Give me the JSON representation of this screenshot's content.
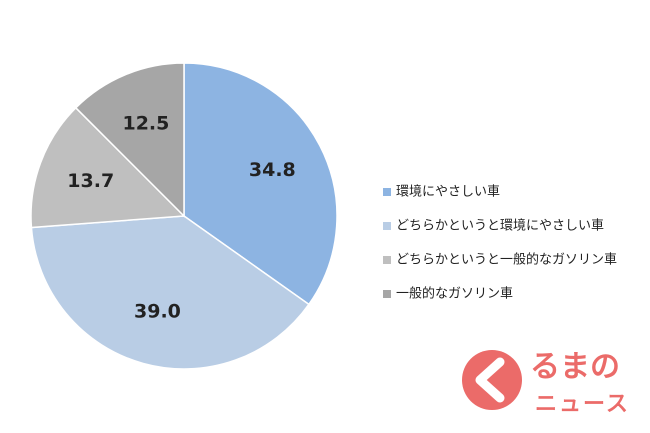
{
  "chart_data": {
    "type": "pie",
    "categories": [
      "環境にやさしい車",
      "どちらかというと環境にやさしい車",
      "どちらかというと一般的なガソリン車",
      "一般的なガソリン車"
    ],
    "values": [
      34.8,
      39.0,
      13.7,
      12.5
    ],
    "value_labels": [
      "34.8",
      "39.0",
      "13.7",
      "12.5"
    ],
    "colors": [
      "#8db4e2",
      "#b9cde5",
      "#bfbfbf",
      "#a6a6a6"
    ],
    "legend": "right"
  },
  "logo": {
    "text": "るまの",
    "subtext": "ニュース"
  }
}
